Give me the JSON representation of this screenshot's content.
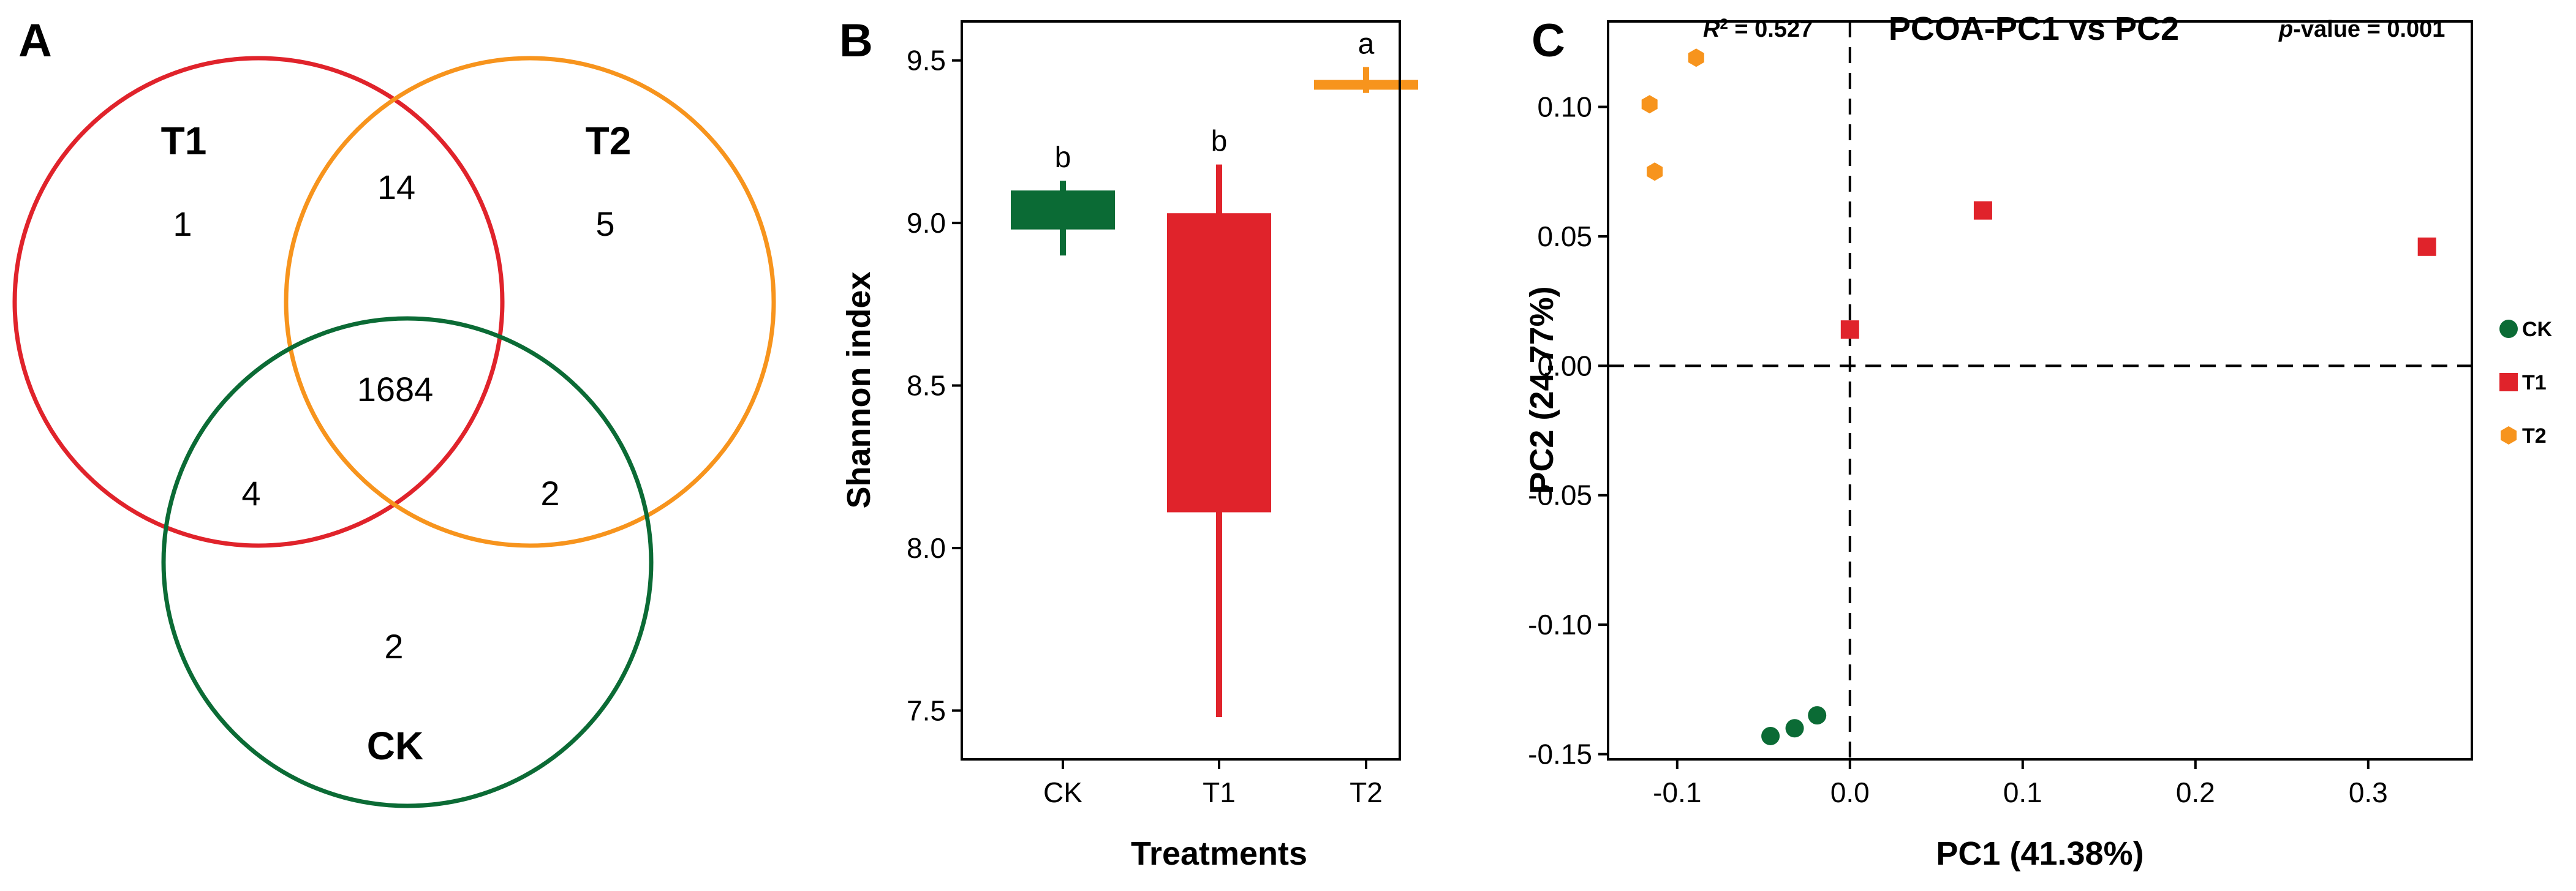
{
  "colors": {
    "CK": "#0b6b35",
    "T1": "#e0232b",
    "T2": "#f7941d",
    "axis": "#000000"
  },
  "panels": {
    "A": {
      "letter": "A"
    },
    "B": {
      "letter": "B"
    },
    "C": {
      "letter": "C"
    }
  },
  "chart_data": [
    {
      "type": "venn",
      "sets": [
        {
          "name": "T1",
          "color": "#e0232b"
        },
        {
          "name": "T2",
          "color": "#f7941d"
        },
        {
          "name": "CK",
          "color": "#0b6b35"
        }
      ],
      "regions": {
        "T1_only": 1,
        "T2_only": 5,
        "CK_only": 2,
        "T1_T2": 14,
        "T1_CK": 4,
        "T2_CK": 2,
        "T1_T2_CK": 1684
      }
    },
    {
      "type": "boxplot",
      "xlabel": "Treatments",
      "ylabel": "Shannon index",
      "ylim": [
        7.35,
        9.62
      ],
      "yticks": [
        7.5,
        8.0,
        8.5,
        9.0,
        9.5
      ],
      "categories": [
        "CK",
        "T1",
        "T2"
      ],
      "boxes": [
        {
          "name": "CK",
          "min": 8.9,
          "q1": 8.98,
          "median": 9.04,
          "q3": 9.1,
          "max": 9.13,
          "letter": "b",
          "color": "#0b6b35"
        },
        {
          "name": "T1",
          "min": 7.48,
          "q1": 8.11,
          "median": 8.6,
          "q3": 9.03,
          "max": 9.18,
          "letter": "b",
          "color": "#e0232b"
        },
        {
          "name": "T2",
          "min": 9.4,
          "q1": 9.41,
          "median": 9.43,
          "q3": 9.44,
          "max": 9.48,
          "letter": "a",
          "color": "#f7941d"
        }
      ]
    },
    {
      "type": "scatter",
      "title": "PCOA-PC1 vs PC2",
      "stats": {
        "r2_label": "R",
        "r2_sup": "2",
        "r2_value": " = 0.527",
        "p_label": "p",
        "p_value": "-value = 0.001"
      },
      "xlabel": "PC1 (41.38%)",
      "ylabel": "PC2 (24.77%)",
      "xlim": [
        -0.14,
        0.36
      ],
      "ylim": [
        -0.152,
        0.133
      ],
      "xticks": [
        -0.1,
        0.0,
        0.1,
        0.2,
        0.3
      ],
      "xtick_labels": [
        "-0.1",
        "0.0",
        "0.1",
        "0.2",
        "0.3"
      ],
      "yticks": [
        -0.15,
        -0.1,
        -0.05,
        0.0,
        0.05,
        0.1
      ],
      "ytick_labels": [
        "-0.15",
        "-0.10",
        "-0.05",
        "0.00",
        "0.05",
        "0.10"
      ],
      "series": [
        {
          "name": "CK",
          "marker": "circle",
          "color": "#0b6b35",
          "points": [
            [
              -0.046,
              -0.143
            ],
            [
              -0.032,
              -0.14
            ],
            [
              -0.019,
              -0.135
            ]
          ]
        },
        {
          "name": "T1",
          "marker": "square",
          "color": "#e0232b",
          "points": [
            [
              0.0,
              0.014
            ],
            [
              0.077,
              0.06
            ],
            [
              0.334,
              0.046
            ]
          ]
        },
        {
          "name": "T2",
          "marker": "hexagon",
          "color": "#f7941d",
          "points": [
            [
              -0.116,
              0.101
            ],
            [
              -0.089,
              0.119
            ],
            [
              -0.113,
              0.075
            ]
          ]
        }
      ],
      "legend": [
        "CK",
        "T1",
        "T2"
      ]
    }
  ]
}
